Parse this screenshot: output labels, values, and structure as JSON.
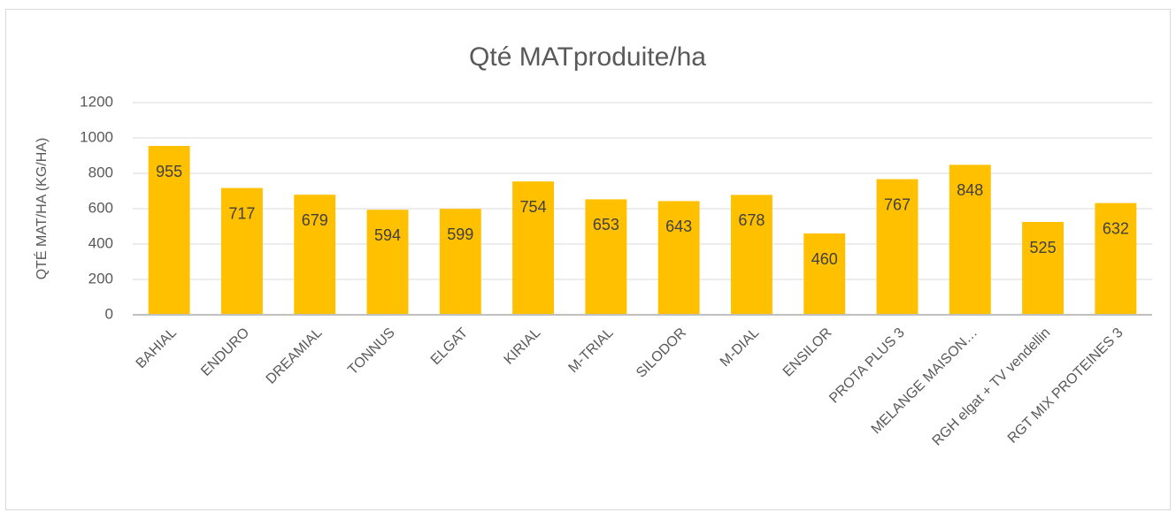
{
  "chart_data": {
    "type": "bar",
    "title": "Qté MATproduite/ha",
    "y_label": "QTÉ MAT/HA (KG/HA)",
    "categories": [
      "BAHIAL",
      "ENDURO",
      "DREAMIAL",
      "TONNUS",
      "ELGAT",
      "KIRIAL",
      "M-TRIAL",
      "SILODOR",
      "M-DIAL",
      "ENSILOR",
      "PROTA PLUS 3",
      "MELANGE MAISON…",
      "RGH elgat + TV vendellin",
      "RGT MIX PROTEINES 3"
    ],
    "values": [
      955,
      717,
      679,
      594,
      599,
      754,
      653,
      643,
      678,
      460,
      767,
      848,
      525,
      632
    ],
    "color": "#ffc000",
    "ylim": [
      0,
      1200
    ],
    "yticks": [
      0,
      200,
      400,
      600,
      800,
      1000,
      1200
    ],
    "grid": true
  }
}
